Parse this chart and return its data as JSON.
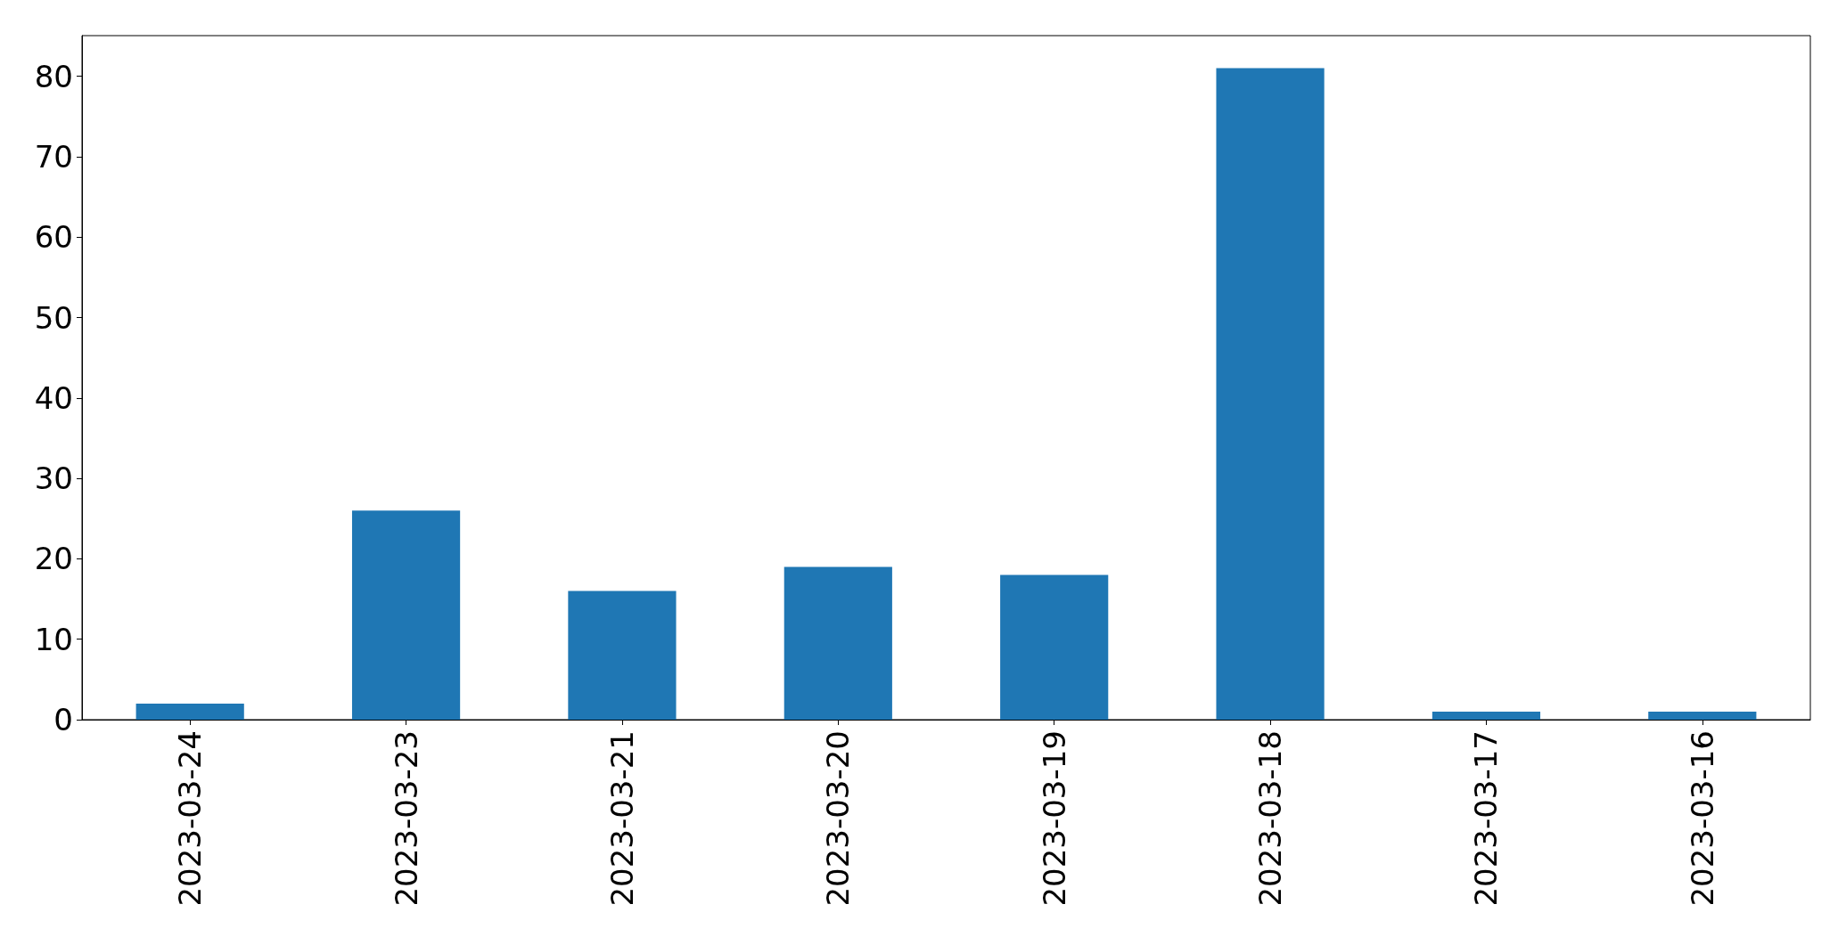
{
  "chart_data": {
    "type": "bar",
    "categories": [
      "2023-03-24",
      "2023-03-23",
      "2023-03-21",
      "2023-03-20",
      "2023-03-19",
      "2023-03-18",
      "2023-03-17",
      "2023-03-16"
    ],
    "values": [
      2,
      26,
      16,
      19,
      18,
      81,
      1,
      1
    ],
    "color": "#1f77b4",
    "ylim": [
      0,
      85.05
    ],
    "yticks": [
      0,
      10,
      20,
      30,
      40,
      50,
      60,
      70,
      80
    ],
    "grid": false
  }
}
